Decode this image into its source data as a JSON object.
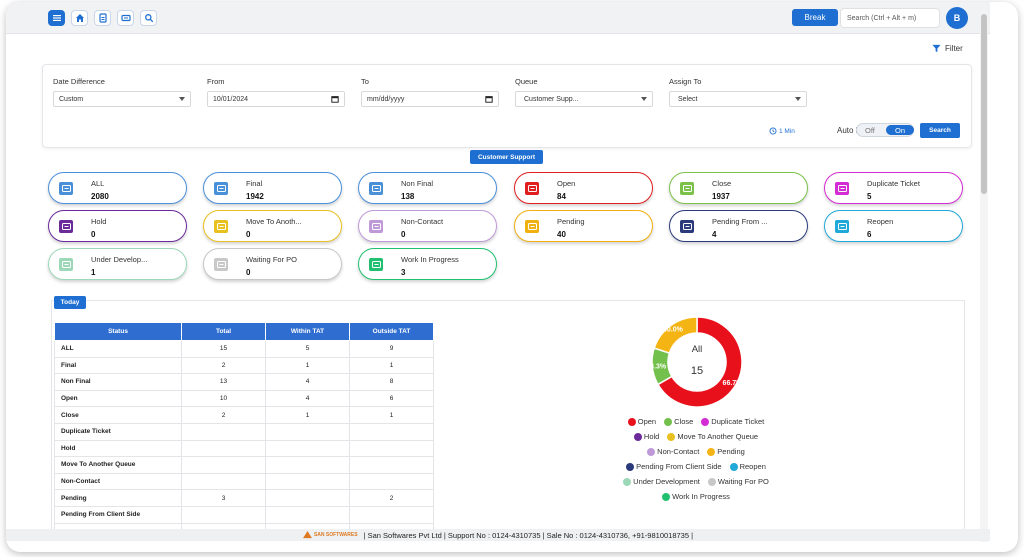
{
  "header": {
    "break_label": "Break",
    "search_placeholder": "Search (Ctrl + Alt + m)",
    "avatar_initial": "B",
    "nav_icons": [
      "menu-icon",
      "home-icon",
      "document-icon",
      "ticket-icon",
      "search-icon"
    ]
  },
  "filter": {
    "link_label": "Filter",
    "date_difference": {
      "label": "Date Difference",
      "value": "Custom"
    },
    "from": {
      "label": "From",
      "value": "10/01/2024"
    },
    "to": {
      "label": "To",
      "value": "mm/dd/yyyy"
    },
    "queue": {
      "label": "Queue",
      "value": "Customer Supp..."
    },
    "assign_to": {
      "label": "Assign To",
      "value": "Select"
    },
    "refresh_interval": "1 Min",
    "auto_refresh_label": "Auto Refresh:",
    "toggle_off": "Off",
    "toggle_on": "On",
    "search_button": "Search"
  },
  "queue_tag": "Customer Support",
  "cards": [
    {
      "name": "ALL",
      "count": "2080",
      "color": "#4a90d9"
    },
    {
      "name": "Final",
      "count": "1942",
      "color": "#4a90d9"
    },
    {
      "name": "Non Final",
      "count": "138",
      "color": "#4a90d9"
    },
    {
      "name": "Open",
      "count": "84",
      "color": "#e02020"
    },
    {
      "name": "Close",
      "count": "1937",
      "color": "#7cc24a"
    },
    {
      "name": "Duplicate Ticket",
      "count": "5",
      "color": "#d42cd4"
    },
    {
      "name": "Hold",
      "count": "0",
      "color": "#6a2a9a"
    },
    {
      "name": "Move To Anoth...",
      "count": "0",
      "color": "#e8c020"
    },
    {
      "name": "Non-Contact",
      "count": "0",
      "color": "#c09ad8"
    },
    {
      "name": "Pending",
      "count": "40",
      "color": "#f0b010"
    },
    {
      "name": "Pending From ...",
      "count": "4",
      "color": "#2a3a7a"
    },
    {
      "name": "Reopen",
      "count": "6",
      "color": "#20a8d8"
    },
    {
      "name": "Under Develop...",
      "count": "1",
      "color": "#9cd8b8"
    },
    {
      "name": "Waiting For PO",
      "count": "0",
      "color": "#c8c8c8"
    },
    {
      "name": "Work In Progress",
      "count": "3",
      "color": "#20c070"
    }
  ],
  "today": {
    "tag": "Today",
    "columns": [
      "Status",
      "Total",
      "Within TAT",
      "Outside TAT"
    ],
    "rows": [
      [
        "ALL",
        "15",
        "5",
        "9"
      ],
      [
        "Final",
        "2",
        "1",
        "1"
      ],
      [
        "Non Final",
        "13",
        "4",
        "8"
      ],
      [
        "Open",
        "10",
        "4",
        "6"
      ],
      [
        "Close",
        "2",
        "1",
        "1"
      ],
      [
        "Duplicate Ticket",
        "",
        "",
        ""
      ],
      [
        "Hold",
        "",
        "",
        ""
      ],
      [
        "Move To Another Queue",
        "",
        "",
        ""
      ],
      [
        "Non-Contact",
        "",
        "",
        ""
      ],
      [
        "Pending",
        "3",
        "",
        "2"
      ],
      [
        "Pending From Client Side",
        "",
        "",
        ""
      ],
      [
        "",
        "",
        "",
        ""
      ]
    ]
  },
  "chart_data": {
    "type": "pie",
    "center_label": "All",
    "center_value": "15",
    "slices": [
      {
        "name": "Open",
        "value": 66.7,
        "label": "66.7%",
        "color": "#e8101a"
      },
      {
        "name": "Close",
        "value": 13.3,
        "label": "13.3%",
        "color": "#74c04c"
      },
      {
        "name": "Pending",
        "value": 20.0,
        "label": "20.0%",
        "color": "#f4b414"
      }
    ],
    "legend": [
      [
        {
          "name": "Open",
          "color": "#e8101a"
        },
        {
          "name": "Close",
          "color": "#74c04c"
        },
        {
          "name": "Duplicate Ticket",
          "color": "#d42cd4"
        }
      ],
      [
        {
          "name": "Hold",
          "color": "#6a2a9a"
        },
        {
          "name": "Move To Another Queue",
          "color": "#e8c020"
        }
      ],
      [
        {
          "name": "Non-Contact",
          "color": "#c09ad8"
        },
        {
          "name": "Pending",
          "color": "#f4b414"
        }
      ],
      [
        {
          "name": "Pending From Client Side",
          "color": "#2a3a7a"
        },
        {
          "name": "Reopen",
          "color": "#20a8d8"
        }
      ],
      [
        {
          "name": "Under Development",
          "color": "#9cd8b8"
        },
        {
          "name": "Waiting For PO",
          "color": "#c8c8c8"
        }
      ],
      [
        {
          "name": "Work In Progress",
          "color": "#20c070"
        }
      ]
    ]
  },
  "footer": {
    "logo_text": "SAN SOFTWARES",
    "text": "| San Softwares Pvt Ltd | Support No : 0124-4310735 | Sale No : 0124-4310736, +91-9810018735 |"
  }
}
